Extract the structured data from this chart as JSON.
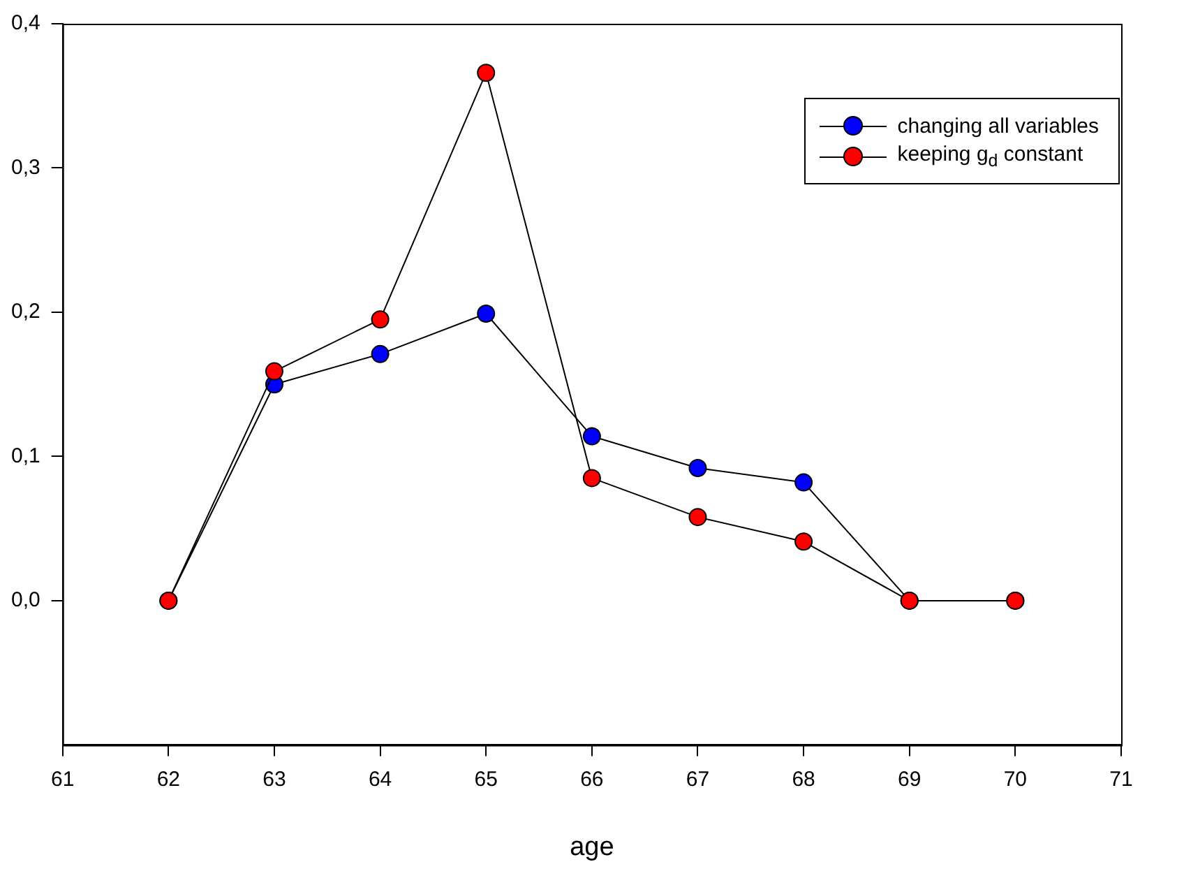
{
  "chart_data": {
    "type": "line",
    "xlabel": "age",
    "x": [
      62,
      63,
      64,
      65,
      66,
      67,
      68,
      69,
      70
    ],
    "series": [
      {
        "name": "changing all variables",
        "color": "#0000ff",
        "values": [
          0,
          0.15,
          0.171,
          0.199,
          0.114,
          0.092,
          0.082,
          0,
          0
        ]
      },
      {
        "name": "keeping g$_{d}$ constant",
        "color": "#ff0000",
        "values": [
          0,
          0.159,
          0.195,
          0.366,
          0.085,
          0.058,
          0.041,
          0,
          0
        ]
      }
    ],
    "xlim": [
      61,
      71
    ],
    "xticks": [
      61,
      62,
      63,
      64,
      65,
      66,
      67,
      68,
      69,
      70,
      71
    ],
    "ylim": [
      -0.1,
      0.4
    ],
    "yticks": [
      {
        "value": 0,
        "label": "0,0"
      },
      {
        "value": 0.1,
        "label": "0,1"
      },
      {
        "value": 0.2,
        "label": "0,2"
      },
      {
        "value": 0.3,
        "label": "0,3"
      },
      {
        "value": 0.4,
        "label": "0,4"
      }
    ],
    "legend": "top right",
    "marker": "circle",
    "line_style": "solid",
    "grid": false
  }
}
